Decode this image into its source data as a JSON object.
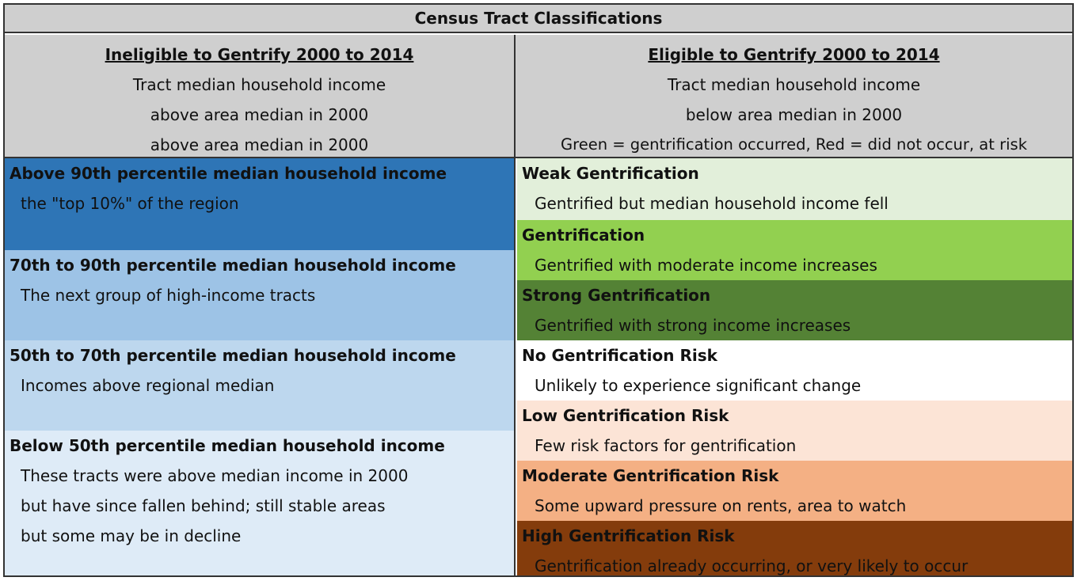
{
  "title": "Census Tract Classifications",
  "left_header": {
    "heading": "Ineligible to Gentrify 2000 to 2014",
    "line1": "Tract median household income",
    "line2": "above area median in 2000",
    "line3": "above area median in 2000"
  },
  "right_header": {
    "heading": "Eligible to Gentrify 2000 to 2014",
    "line1": "Tract median household income",
    "line2": "below area median in 2000",
    "line3": "Green = gentrification occurred, Red = did not occur, at risk"
  },
  "left_rows": [
    {
      "title": "Above 90th percentile median household income",
      "lines": [
        "the \"top 10%\" of the region"
      ],
      "color": "#2e75b6",
      "text_color": "#111111"
    },
    {
      "title": "70th to 90th percentile median household income",
      "lines": [
        "The next group of high-income tracts"
      ],
      "color": "#9dc3e6",
      "text_color": "#111111"
    },
    {
      "title": "50th to 70th percentile median household income",
      "lines": [
        "Incomes above regional median"
      ],
      "color": "#bdd7ee",
      "text_color": "#111111"
    },
    {
      "title": "Below 50th percentile median household income",
      "lines": [
        "These tracts were above median income in 2000",
        "but have since fallen behind; still stable areas",
        "but some may be in decline"
      ],
      "color": "#deebf7",
      "text_color": "#111111"
    }
  ],
  "right_rows": [
    {
      "title": "Weak Gentrification",
      "desc": "Gentrified but median household income fell",
      "color": "#e2efda"
    },
    {
      "title": "Gentrification",
      "desc": "Gentrified with moderate income increases",
      "color": "#92d050"
    },
    {
      "title": "Strong Gentrification",
      "desc": "Gentrified with strong income increases",
      "color": "#548235"
    },
    {
      "title": "No Gentrification Risk",
      "desc": "Unlikely to experience significant change",
      "color": "#ffffff"
    },
    {
      "title": "Low Gentrification Risk",
      "desc": "Few risk factors for gentrification",
      "color": "#fce4d6"
    },
    {
      "title": "Moderate Gentrification Risk",
      "desc": "Some upward pressure on rents, area to watch",
      "color": "#f4b084"
    },
    {
      "title": "High Gentrification Risk",
      "desc": "Gentrification already occurring, or very likely to occur",
      "color": "#843c0c"
    }
  ]
}
